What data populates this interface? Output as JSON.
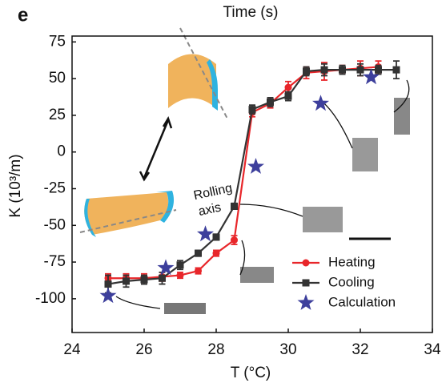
{
  "panel_label": "e",
  "chart_data": {
    "type": "line",
    "title": "Time (s)",
    "x_label": "T (°C)",
    "y_label": "K (10³/m)",
    "annotation": [
      "Rolling",
      "axis"
    ],
    "xlim": [
      24,
      34
    ],
    "xticks": [
      24,
      26,
      28,
      30,
      32,
      34
    ],
    "ylim": [
      -123,
      79
    ],
    "yticks": [
      75,
      50,
      25,
      0,
      -25,
      -50,
      -75,
      -100
    ],
    "legend": "lower right",
    "series": [
      {
        "name": "Heating",
        "color": "#e8262a",
        "marker": "circle",
        "line": true,
        "x": [
          25,
          25.5,
          26,
          26.5,
          27,
          27.5,
          28,
          28.5,
          29,
          29.5,
          30,
          30.5,
          31,
          31.5,
          32,
          32.5
        ],
        "values": [
          -86,
          -86,
          -86,
          -85,
          -84,
          -81,
          -69,
          -60,
          27,
          33,
          44,
          54,
          55,
          56,
          57,
          58
        ],
        "errors": [
          3,
          3,
          3,
          3,
          2,
          2,
          2,
          3,
          3,
          3,
          4,
          4,
          6,
          3,
          5,
          4
        ]
      },
      {
        "name": "Cooling",
        "color": "#333333",
        "marker": "square",
        "line": true,
        "x": [
          25,
          25.5,
          26,
          26.5,
          27,
          27.5,
          28,
          28.5,
          29,
          29.5,
          30,
          30.5,
          31,
          31.5,
          32,
          32.5,
          33
        ],
        "values": [
          -90,
          -88,
          -87,
          -86,
          -77,
          -69,
          -58,
          -37,
          29,
          34,
          38,
          55,
          56,
          56,
          56,
          56,
          56
        ],
        "errors": [
          6,
          4,
          3,
          4,
          3,
          2,
          2,
          2,
          3,
          3,
          3,
          3,
          4,
          3,
          4,
          3,
          6
        ]
      },
      {
        "name": "Calculation",
        "color": "#3d3f9c",
        "marker": "star",
        "line": false,
        "x": [
          25,
          26.6,
          27.7,
          29.1,
          30.9,
          32.3
        ],
        "values": [
          -98,
          -79,
          -56,
          -10,
          33,
          51
        ]
      }
    ]
  }
}
